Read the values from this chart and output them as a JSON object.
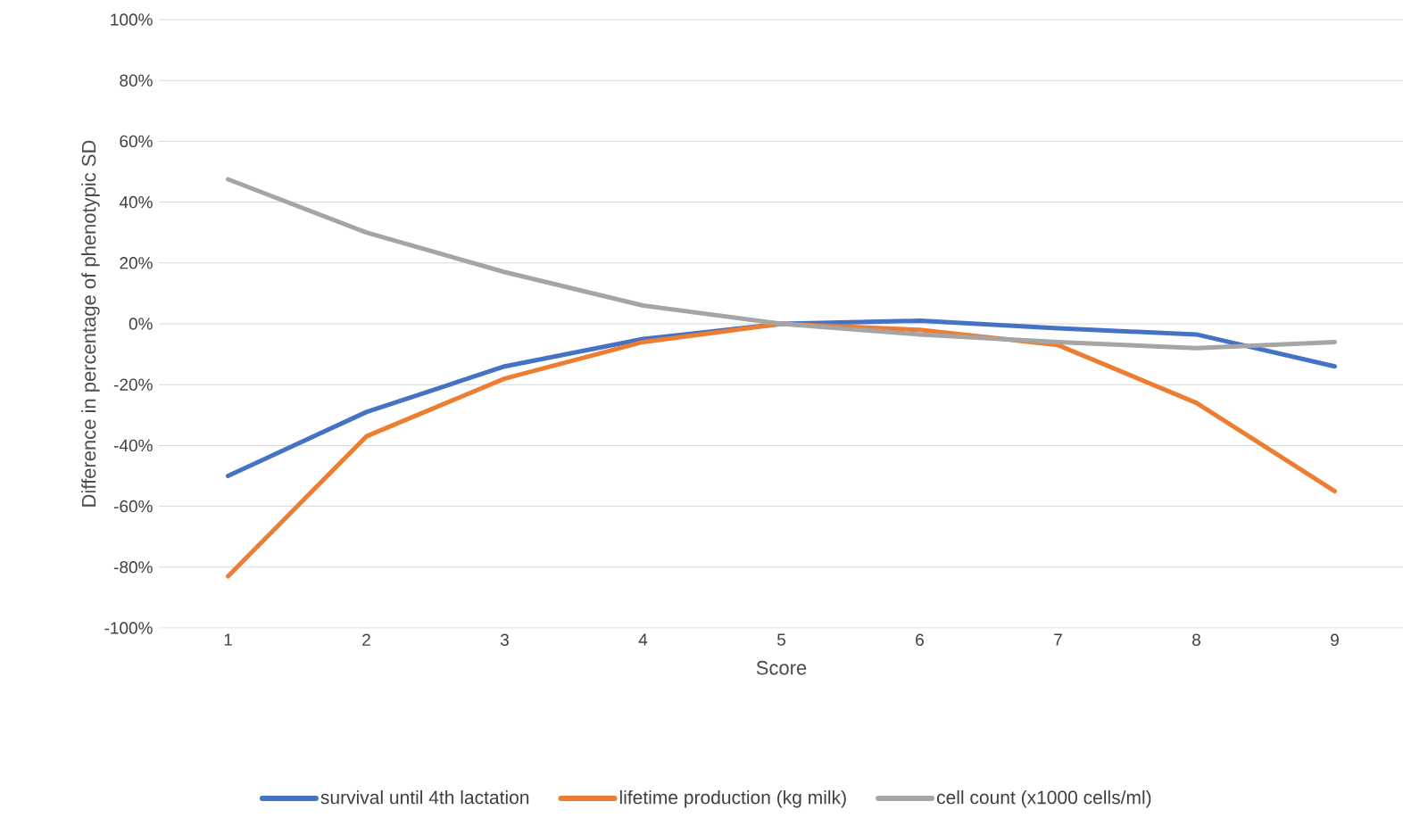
{
  "chart_data": {
    "type": "line",
    "xlabel": "Score",
    "ylabel": "Difference in percentage of phenotypic SD",
    "categories": [
      "1",
      "2",
      "3",
      "4",
      "5",
      "6",
      "7",
      "8",
      "9"
    ],
    "series": [
      {
        "name": "survival until 4th lactation",
        "color": "#4472c4",
        "values": [
          -50,
          -29,
          -14,
          -5,
          0,
          1,
          -1.5,
          -3.5,
          -14
        ]
      },
      {
        "name": "lifetime production (kg milk)",
        "color": "#ed7d31",
        "values": [
          -83,
          -37,
          -18,
          -6,
          0,
          -2,
          -7,
          -26,
          -55
        ]
      },
      {
        "name": "cell count (x1000 cells/ml)",
        "color": "#a5a5a5",
        "values": [
          47.5,
          30,
          17,
          6,
          0,
          -3.5,
          -6,
          -8,
          -6
        ]
      }
    ],
    "ylim": [
      -100,
      100
    ],
    "yticks": [
      {
        "value": -100,
        "label": "-100%"
      },
      {
        "value": -80,
        "label": "-80%"
      },
      {
        "value": -60,
        "label": "-60%"
      },
      {
        "value": -40,
        "label": "-40%"
      },
      {
        "value": -20,
        "label": "-20%"
      },
      {
        "value": 0,
        "label": "0%"
      },
      {
        "value": 20,
        "label": "20%"
      },
      {
        "value": 40,
        "label": "40%"
      },
      {
        "value": 60,
        "label": "60%"
      },
      {
        "value": 80,
        "label": "80%"
      },
      {
        "value": 100,
        "label": "100%"
      }
    ],
    "grid": "y",
    "legend": "bottom"
  }
}
